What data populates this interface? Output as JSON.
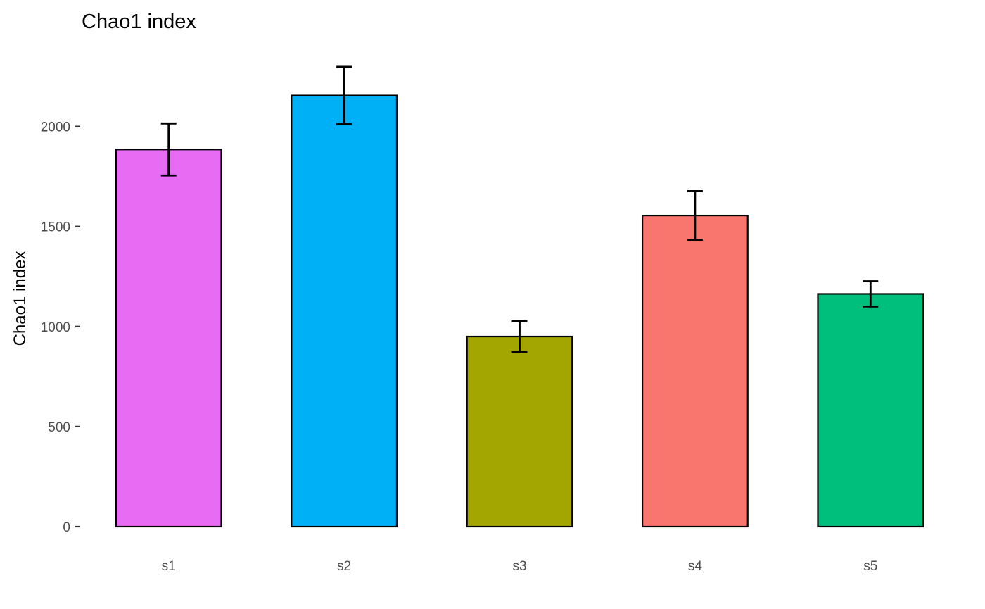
{
  "chart_data": {
    "type": "bar",
    "title": "Chao1 index",
    "xlabel": "",
    "ylabel": "Chao1 index",
    "categories": [
      "s1",
      "s2",
      "s3",
      "s4",
      "s5"
    ],
    "values": [
      1885,
      2155,
      950,
      1555,
      1163
    ],
    "error": [
      130,
      143,
      76,
      122,
      63
    ],
    "colors": [
      "#E76BF3",
      "#00B0F6",
      "#A3A500",
      "#F8766D",
      "#00BF7D"
    ],
    "ylim": [
      0,
      2320
    ],
    "yticks": [
      0,
      500,
      1000,
      1500,
      2000
    ],
    "grid": false,
    "legend": "none"
  }
}
